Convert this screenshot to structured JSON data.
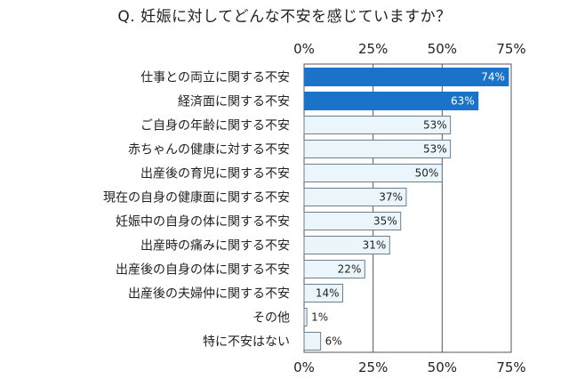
{
  "chart_data": {
    "type": "bar",
    "orientation": "horizontal",
    "title": "Q. 妊娠に対してどんな不安を感じていますか？",
    "categories": [
      "仕事との両立に関する不安",
      "経済面に関する不安",
      "ご自身の年齢に関する不安",
      "赤ちゃんの健康に対する不安",
      "出産後の育児に関する不安",
      "現在の自身の健康面に関する不安",
      "妊娠中の自身の体に関する不安",
      "出産時の痛みに関する不安",
      "出産後の自身の体に関する不安",
      "出産後の夫婦仲に関する不安",
      "その他",
      "特に不安はない"
    ],
    "values": [
      74,
      63,
      53,
      53,
      50,
      37,
      35,
      31,
      22,
      14,
      1,
      6
    ],
    "value_labels": [
      "74%",
      "63%",
      "53%",
      "53%",
      "50%",
      "37%",
      "35%",
      "31%",
      "22%",
      "14%",
      "1%",
      "6%"
    ],
    "highlighted_count": 2,
    "xlim": [
      0,
      75
    ],
    "xticks": [
      0,
      25,
      50,
      75
    ],
    "xtick_labels": [
      "0%",
      "25%",
      "50%",
      "75%"
    ],
    "tick_labels_top_and_bottom": true,
    "grid": true,
    "legend": "none",
    "colors": {
      "highlight_fill": "#1a73c8",
      "normal_fill": "#eaf6fc",
      "bar_stroke": "#6b7f8f",
      "grid": "#555555"
    }
  }
}
